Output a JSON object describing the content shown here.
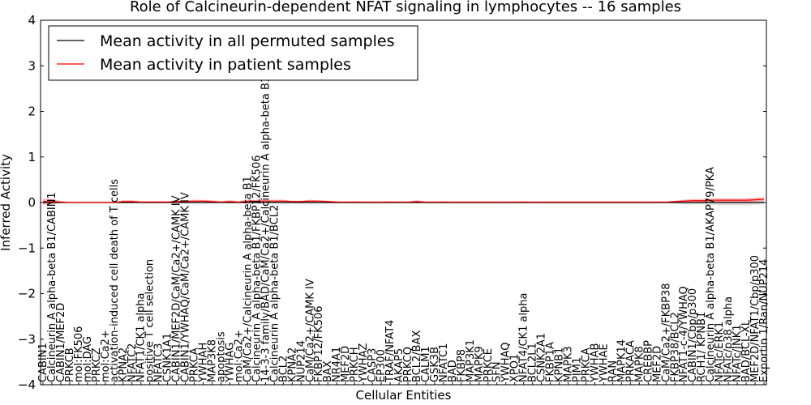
{
  "chart_data": {
    "type": "line",
    "title": "Role of Calcineurin-dependent NFAT signaling in lymphocytes -- 16 samples",
    "xlabel": "Cellular Entities",
    "ylabel": "Inferred Activity",
    "ylim": [
      -4,
      4
    ],
    "yticks": [
      -4,
      -3,
      -2,
      -1,
      0,
      1,
      2,
      3,
      4
    ],
    "grid": false,
    "legend_position": "upper-left",
    "categories": [
      "CABIN1",
      "Calcineurin A alpha-beta B1/CABIN1",
      "CABIN1/MEF2D",
      "PRKCB",
      "mol:FK506",
      "mol:DAG",
      "PRKCZ",
      "mol:Ca2+",
      "activation-induced cell death of T cells",
      "KPNA2",
      "NFATC2",
      "NFAT1/CK1 alpha",
      "positive T cell selection",
      "NFATC3",
      "CSNK1A1",
      "CABIN1/MEF2D/CaM/Ca2+/CAMK IV",
      "CABIN1/YWHAQ/CaM/Ca2+/CAMK IV",
      "PRKCA",
      "YWHAH",
      "MAP3K8",
      "apoptosis",
      "YWHAG",
      "mol:Ca2+",
      "CaM/Ca2+/Calcineurin A alpha-beta B1",
      "Calcineurin A alpha-beta B1/FKBP12/FK506",
      "14-3-3 family/BAD/CaM/Ca2+/Calcineurin A alpha-beta B1",
      "Calcineurin A alpha-beta B1/BCL2",
      "BCL2",
      "KPNA2",
      "NUP214",
      "CaM/Ca2+/CAMK IV",
      "FKBP12/FK506",
      "BAX",
      "NR4A1",
      "MEF2D",
      "PRKCH",
      "YWHAZ",
      "CASP3",
      "EP300",
      "TRAF/NFAT4",
      "AKAP5",
      "PRKCQ",
      "BCL2/BAX",
      "CALM1",
      "GSK3B",
      "NFATC1",
      "BAD",
      "FKBP8",
      "MAP3K1",
      "MAPK9",
      "PRKCE",
      "SFN",
      "YWHAQ",
      "XPO1",
      "NFAT4/CK1 alpha",
      "BCL2L1",
      "CSNK2A1",
      "FKBP1A",
      "KPNB1",
      "MAPK3",
      "PIM1",
      "PRKCA",
      "YWHAB",
      "YWHAE",
      "RAN",
      "MAPK14",
      "PRKACA",
      "MAPK8",
      "CREBBP",
      "MEF2D",
      "CaM/Ca2+/FKBP38",
      "FKBP38/BCL2",
      "NFAT1-c-4/YWHAQ",
      "CABIN1/Cbp/p300",
      "RCH1/ KPNB1",
      "Calcineurin A alpha-beta B1/AKAP79/PKA",
      "NFATc/ERK1",
      "NFATc/p38 alpha",
      "NFATc/JNK1",
      "BAD/BCL-XL",
      "MEF2D/NFAT1/Cbp/p300",
      "Exportin 1/Ran/NUP214"
    ],
    "series": [
      {
        "name": "Mean activity in all permuted samples",
        "color": "#000000",
        "values": [
          0,
          0,
          0,
          0,
          0,
          0,
          0,
          0,
          0,
          0,
          0,
          0,
          0,
          0,
          0,
          0,
          0,
          0,
          0,
          0,
          0,
          0,
          0,
          0,
          0,
          0,
          0,
          0,
          0,
          0,
          0,
          0,
          0,
          0,
          0,
          0,
          0,
          0,
          0,
          0,
          0,
          0,
          0,
          0,
          0,
          0,
          0,
          0,
          0,
          0,
          0,
          0,
          0,
          0,
          0,
          0,
          0,
          0,
          0,
          0,
          0,
          0,
          0,
          0,
          0,
          0,
          0,
          0,
          0,
          0,
          0,
          0,
          0,
          0,
          0,
          0,
          0,
          0,
          0,
          0,
          0,
          0
        ],
        "band": [
          0.02,
          0.02,
          0.02,
          0.02,
          0.02,
          0.02,
          0.02,
          0.02,
          0.02,
          0.02,
          0.02,
          0.02,
          0.02,
          0.02,
          0.02,
          0.02,
          0.02,
          0.02,
          0.02,
          0.02,
          0.02,
          0.02,
          0.02,
          0.02,
          0.02,
          0.02,
          0.02,
          0.02,
          0.02,
          0.02,
          0.02,
          0.02,
          0.02,
          0.02,
          0.02,
          0.02,
          0.02,
          0.02,
          0.02,
          0.02,
          0.02,
          0.02,
          0.02,
          0.02,
          0.02,
          0.02,
          0.02,
          0.02,
          0.02,
          0.02,
          0.02,
          0.02,
          0.02,
          0.02,
          0.02,
          0.02,
          0.02,
          0.02,
          0.02,
          0.02,
          0.02,
          0.02,
          0.02,
          0.02,
          0.02,
          0.02,
          0.02,
          0.02,
          0.02,
          0.02,
          0.02,
          0.02,
          0.05,
          0.04,
          0.04,
          0.06,
          0.06,
          0.06,
          0.06,
          0.06,
          0.05,
          0.04
        ]
      },
      {
        "name": "Mean activity in patient samples",
        "color": "#ff0000",
        "values": [
          0.02,
          0.02,
          0.01,
          0,
          0,
          0,
          0,
          0,
          0,
          0.02,
          0.02,
          0.01,
          0.01,
          0.01,
          0.01,
          0.02,
          0.02,
          0.03,
          0.03,
          0.02,
          0.01,
          0.02,
          0.01,
          0.03,
          0.03,
          0.03,
          0.03,
          0.03,
          0.02,
          0.02,
          0.03,
          0.03,
          0.02,
          0.01,
          0.01,
          0.01,
          0.01,
          0.01,
          0.01,
          0.01,
          0.01,
          0.01,
          0.02,
          0.01,
          0.01,
          0.01,
          0.01,
          0.01,
          0.01,
          0.01,
          0.01,
          0.01,
          0.01,
          0.01,
          0.01,
          0.01,
          0.01,
          0.01,
          0.01,
          0.01,
          0.01,
          0.01,
          0.01,
          0.01,
          0.01,
          0.01,
          0.01,
          0.01,
          0.01,
          0.01,
          0.01,
          0.02,
          0.03,
          0.04,
          0.04,
          0.05,
          0.05,
          0.05,
          0.05,
          0.05,
          0.06,
          0.07
        ],
        "band": [
          0.06,
          0.06,
          0.02,
          0.01,
          0.01,
          0.01,
          0.01,
          0.01,
          0.01,
          0.03,
          0.03,
          0.02,
          0.02,
          0.02,
          0.02,
          0.03,
          0.03,
          0.03,
          0.03,
          0.03,
          0.02,
          0.03,
          0.02,
          0.03,
          0.03,
          0.03,
          0.03,
          0.03,
          0.02,
          0.02,
          0.03,
          0.02,
          0.02,
          0.02,
          0.01,
          0.02,
          0.01,
          0.01,
          0.01,
          0.02,
          0.01,
          0.01,
          0.03,
          0.01,
          0.01,
          0.02,
          0.01,
          0.01,
          0.01,
          0.01,
          0.01,
          0.01,
          0.01,
          0.01,
          0.02,
          0.01,
          0.01,
          0.01,
          0.01,
          0.01,
          0.01,
          0.01,
          0.01,
          0.01,
          0.01,
          0.01,
          0.01,
          0.01,
          0.01,
          0.01,
          0.01,
          0.02,
          0.03,
          0.03,
          0.03,
          0.04,
          0.04,
          0.04,
          0.04,
          0.04,
          0.04,
          0.04
        ]
      }
    ]
  }
}
